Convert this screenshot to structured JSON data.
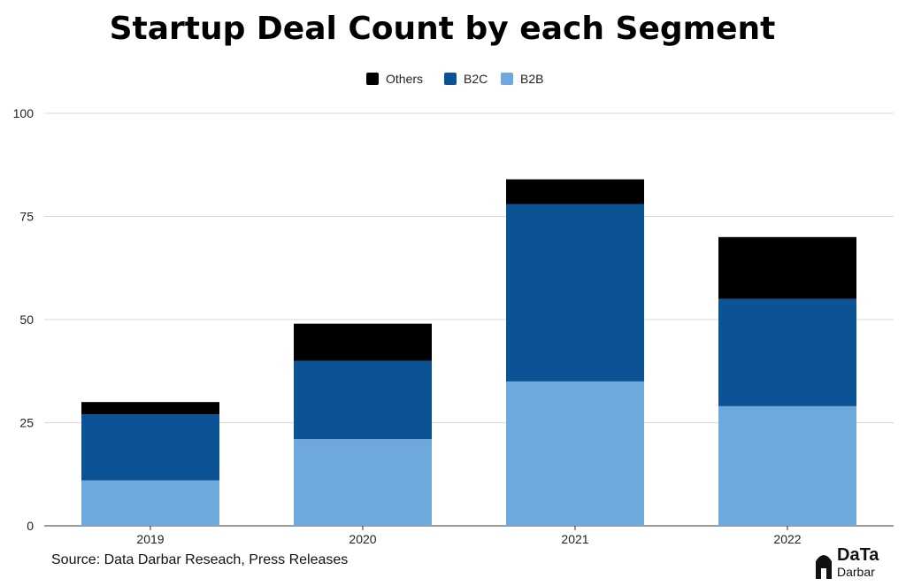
{
  "chart_data": {
    "type": "bar",
    "stacked": true,
    "title": "Startup Deal Count by each Segment",
    "categories": [
      "2019",
      "2020",
      "2021",
      "2022"
    ],
    "series": [
      {
        "name": "B2B",
        "values": [
          11,
          21,
          35,
          29
        ],
        "color": "#6fa8dc"
      },
      {
        "name": "B2C",
        "values": [
          16,
          19,
          43,
          26
        ],
        "color": "#0b5394"
      },
      {
        "name": "Others",
        "values": [
          3,
          9,
          6,
          15
        ],
        "color": "#000000"
      }
    ],
    "legend_order": [
      "Others",
      "B2C",
      "B2B"
    ],
    "ylim": [
      0,
      100
    ],
    "yticks": [
      "0",
      "25",
      "50",
      "75",
      "100"
    ],
    "ytick_values": [
      0,
      25,
      50,
      75,
      100
    ],
    "grid": true,
    "legend_position": "top-center",
    "xlabel": "",
    "ylabel": ""
  },
  "source": "Source: Data Darbar Reseach, Press Releases",
  "logo": {
    "line1": "DaTa",
    "line2": "Darbar"
  }
}
